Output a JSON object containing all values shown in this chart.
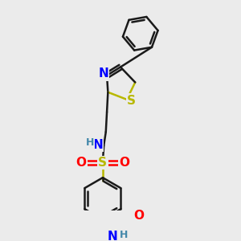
{
  "bg_color": "#ebebeb",
  "bond_color": "#1a1a1a",
  "bond_width": 1.8,
  "atom_colors": {
    "N": "#0000ff",
    "S_yellow": "#b8b800",
    "O": "#ff0000",
    "H_teal": "#4488aa",
    "C": "#1a1a1a"
  },
  "font_size_atom": 11,
  "fig_width": 3.0,
  "fig_height": 3.0,
  "dpi": 100,
  "xlim": [
    0.0,
    1.0
  ],
  "ylim": [
    0.0,
    1.0
  ]
}
